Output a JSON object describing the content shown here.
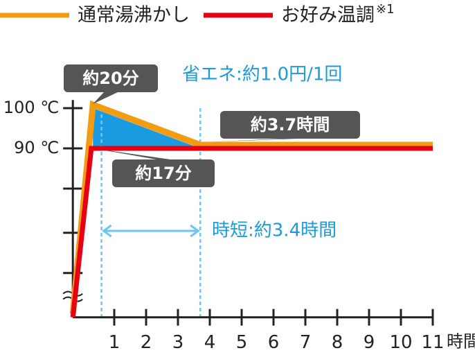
{
  "chart_data": {
    "type": "line",
    "x_label": "時間",
    "legend_note": "※1",
    "series": [
      {
        "name": "通常湯沸かし",
        "color": "#f39c12",
        "x": [
          -0.3,
          0.33,
          3.7,
          11
        ],
        "values": [
          48,
          100,
          90,
          90
        ]
      },
      {
        "name": "お好み温調",
        "color": "#e60012",
        "x": [
          -0.3,
          0.28,
          11
        ],
        "values": [
          48,
          90,
          90
        ]
      }
    ],
    "xlim": [
      -0.3,
      11
    ],
    "xticks": [
      1,
      2,
      3,
      4,
      5,
      6,
      7,
      8,
      9,
      10,
      11
    ],
    "ylim": [
      48,
      101
    ],
    "yticks": [
      {
        "value": 100,
        "label": "100 ℃"
      },
      {
        "value": 90,
        "label": "90 ℃"
      }
    ],
    "yminor_ticks": [
      80,
      69,
      59
    ],
    "dashed_x": [
      0.6,
      3.7
    ],
    "annotations": {
      "peak": "約20分",
      "reach": "約17分",
      "end": "約3.7時間",
      "saving": "省エネ:約1.0円/1回",
      "shorter": "時短:約3.4時間"
    },
    "fill_color": "#1a9be0"
  }
}
